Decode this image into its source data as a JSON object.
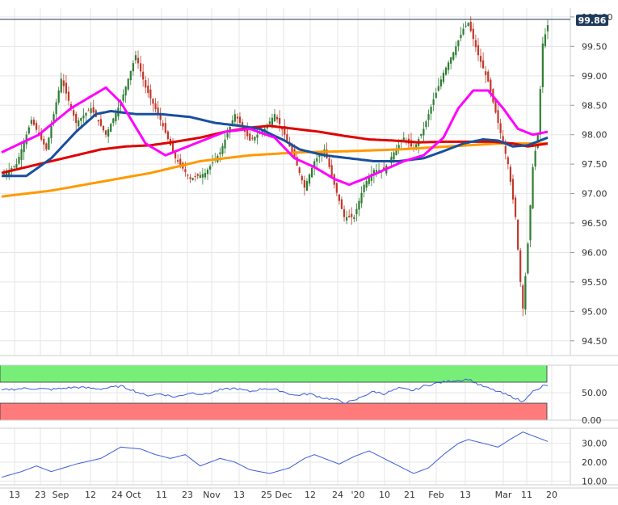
{
  "chart_data": [
    {
      "type": "candlestick",
      "panel": "price",
      "x_tick_labels": [
        "13",
        "23",
        "Sep",
        "12",
        "24",
        "Oct",
        "11",
        "23",
        "Nov",
        "13",
        "25",
        "Dec",
        "12",
        "24",
        "'20",
        "10",
        "21",
        "Feb",
        "13",
        "Mar",
        "11",
        "20"
      ],
      "y_tick_labels": [
        "100.00",
        "99.50",
        "99.00",
        "98.50",
        "98.00",
        "97.50",
        "97.00",
        "96.50",
        "96.00",
        "95.50",
        "95.00",
        "94.50"
      ],
      "ylim": [
        94.25,
        100.15
      ],
      "last_price": "99.86",
      "last_price_value": 99.86,
      "grid": true,
      "colors": {
        "up": "#2e7d32",
        "down": "#c0392b",
        "last_price_badge": "#1f3b5c",
        "sma20": "#ff00ff",
        "sma50": "#1a4f9c",
        "sma100": "#e00000",
        "sma200": "#ff9900"
      },
      "close_key_points": [
        [
          0,
          97.3
        ],
        [
          6,
          97.5
        ],
        [
          12,
          98.25
        ],
        [
          18,
          97.75
        ],
        [
          24,
          98.95
        ],
        [
          30,
          98.2
        ],
        [
          36,
          98.45
        ],
        [
          42,
          98.0
        ],
        [
          48,
          98.55
        ],
        [
          54,
          99.35
        ],
        [
          58,
          98.8
        ],
        [
          64,
          98.25
        ],
        [
          70,
          97.6
        ],
        [
          76,
          97.25
        ],
        [
          82,
          97.35
        ],
        [
          88,
          97.7
        ],
        [
          94,
          98.35
        ],
        [
          100,
          97.9
        ],
        [
          106,
          98.1
        ],
        [
          110,
          98.35
        ],
        [
          114,
          98.0
        ],
        [
          118,
          97.6
        ],
        [
          122,
          97.1
        ],
        [
          126,
          97.55
        ],
        [
          130,
          97.75
        ],
        [
          134,
          97.15
        ],
        [
          138,
          96.6
        ],
        [
          142,
          96.6
        ],
        [
          146,
          97.15
        ],
        [
          150,
          97.4
        ],
        [
          154,
          97.4
        ],
        [
          158,
          97.7
        ],
        [
          162,
          97.95
        ],
        [
          166,
          97.75
        ],
        [
          170,
          98.1
        ],
        [
          174,
          98.6
        ],
        [
          178,
          99.05
        ],
        [
          182,
          99.4
        ],
        [
          186,
          99.8
        ],
        [
          188,
          99.9
        ],
        [
          192,
          99.35
        ],
        [
          196,
          98.9
        ],
        [
          200,
          98.2
        ],
        [
          204,
          97.5
        ],
        [
          207,
          96.6
        ],
        [
          209,
          95.5
        ],
        [
          210,
          95.05
        ],
        [
          212,
          96.15
        ],
        [
          214,
          97.45
        ],
        [
          216,
          98.0
        ],
        [
          218,
          99.55
        ],
        [
          220,
          99.86
        ]
      ],
      "moving_averages": [
        {
          "period": 20,
          "key_points": [
            [
              0,
              97.7
            ],
            [
              15,
              98.0
            ],
            [
              28,
              98.45
            ],
            [
              42,
              98.8
            ],
            [
              48,
              98.55
            ],
            [
              58,
              97.85
            ],
            [
              66,
              97.65
            ],
            [
              78,
              97.85
            ],
            [
              90,
              98.05
            ],
            [
              100,
              98.1
            ],
            [
              110,
              97.95
            ],
            [
              118,
              97.6
            ],
            [
              126,
              97.45
            ],
            [
              134,
              97.25
            ],
            [
              140,
              97.15
            ],
            [
              146,
              97.25
            ],
            [
              154,
              97.4
            ],
            [
              162,
              97.55
            ],
            [
              170,
              97.65
            ],
            [
              178,
              97.95
            ],
            [
              184,
              98.45
            ],
            [
              190,
              98.75
            ],
            [
              196,
              98.75
            ],
            [
              202,
              98.45
            ],
            [
              208,
              98.1
            ],
            [
              214,
              98.0
            ],
            [
              220,
              98.05
            ]
          ]
        },
        {
          "period": 50,
          "key_points": [
            [
              0,
              97.3
            ],
            [
              10,
              97.3
            ],
            [
              20,
              97.6
            ],
            [
              30,
              98.05
            ],
            [
              38,
              98.35
            ],
            [
              44,
              98.4
            ],
            [
              54,
              98.35
            ],
            [
              64,
              98.35
            ],
            [
              76,
              98.3
            ],
            [
              86,
              98.2
            ],
            [
              96,
              98.15
            ],
            [
              104,
              98.1
            ],
            [
              114,
              97.9
            ],
            [
              120,
              97.75
            ],
            [
              130,
              97.65
            ],
            [
              140,
              97.6
            ],
            [
              150,
              97.55
            ],
            [
              160,
              97.55
            ],
            [
              170,
              97.6
            ],
            [
              178,
              97.72
            ],
            [
              186,
              97.85
            ],
            [
              194,
              97.92
            ],
            [
              200,
              97.9
            ],
            [
              206,
              97.8
            ],
            [
              212,
              97.82
            ],
            [
              220,
              97.95
            ]
          ]
        },
        {
          "period": 100,
          "key_points": [
            [
              0,
              97.35
            ],
            [
              10,
              97.45
            ],
            [
              20,
              97.55
            ],
            [
              30,
              97.65
            ],
            [
              40,
              97.75
            ],
            [
              50,
              97.8
            ],
            [
              60,
              97.82
            ],
            [
              70,
              97.88
            ],
            [
              80,
              97.95
            ],
            [
              90,
              98.05
            ],
            [
              100,
              98.12
            ],
            [
              108,
              98.15
            ],
            [
              118,
              98.1
            ],
            [
              128,
              98.05
            ],
            [
              138,
              97.98
            ],
            [
              148,
              97.92
            ],
            [
              158,
              97.9
            ],
            [
              168,
              97.87
            ],
            [
              178,
              97.88
            ],
            [
              188,
              97.88
            ],
            [
              198,
              97.88
            ],
            [
              206,
              97.85
            ],
            [
              212,
              97.8
            ],
            [
              220,
              97.85
            ]
          ]
        },
        {
          "period": 200,
          "key_points": [
            [
              0,
              96.95
            ],
            [
              20,
              97.05
            ],
            [
              40,
              97.2
            ],
            [
              60,
              97.35
            ],
            [
              80,
              97.55
            ],
            [
              100,
              97.65
            ],
            [
              120,
              97.7
            ],
            [
              140,
              97.72
            ],
            [
              160,
              97.75
            ],
            [
              180,
              97.8
            ],
            [
              200,
              97.85
            ],
            [
              220,
              97.85
            ]
          ]
        }
      ]
    },
    {
      "type": "line",
      "panel": "rsi",
      "y_tick_labels": [
        "50.00",
        "0.00"
      ],
      "ylim": [
        0,
        100
      ],
      "overbought_zone": [
        70,
        100
      ],
      "oversold_zone": [
        0,
        30
      ],
      "colors": {
        "line": "#3a5bd9",
        "overbought": "#77ee77",
        "oversold": "#ff7b7b"
      },
      "key_points": [
        [
          0,
          55
        ],
        [
          10,
          58
        ],
        [
          20,
          56
        ],
        [
          30,
          60
        ],
        [
          40,
          57
        ],
        [
          48,
          62
        ],
        [
          52,
          56
        ],
        [
          58,
          45
        ],
        [
          64,
          48
        ],
        [
          70,
          42
        ],
        [
          76,
          50
        ],
        [
          82,
          47
        ],
        [
          88,
          55
        ],
        [
          94,
          58
        ],
        [
          100,
          52
        ],
        [
          106,
          58
        ],
        [
          112,
          54
        ],
        [
          118,
          45
        ],
        [
          124,
          48
        ],
        [
          130,
          40
        ],
        [
          134,
          38
        ],
        [
          138,
          32
        ],
        [
          142,
          35
        ],
        [
          146,
          45
        ],
        [
          150,
          52
        ],
        [
          154,
          48
        ],
        [
          160,
          58
        ],
        [
          166,
          54
        ],
        [
          170,
          62
        ],
        [
          176,
          68
        ],
        [
          182,
          72
        ],
        [
          186,
          73
        ],
        [
          188,
          75
        ],
        [
          192,
          65
        ],
        [
          196,
          58
        ],
        [
          200,
          52
        ],
        [
          204,
          45
        ],
        [
          207,
          40
        ],
        [
          209,
          35
        ],
        [
          210,
          33
        ],
        [
          212,
          45
        ],
        [
          214,
          52
        ],
        [
          216,
          55
        ],
        [
          218,
          62
        ],
        [
          220,
          63
        ]
      ]
    },
    {
      "type": "line",
      "panel": "adx",
      "y_tick_labels": [
        "30.00",
        "20.00",
        "10.00"
      ],
      "ylim": [
        8,
        38
      ],
      "colors": {
        "line": "#3a5bd9"
      },
      "key_points": [
        [
          0,
          12
        ],
        [
          8,
          15
        ],
        [
          14,
          18
        ],
        [
          20,
          15
        ],
        [
          30,
          19
        ],
        [
          40,
          22
        ],
        [
          48,
          28
        ],
        [
          56,
          27
        ],
        [
          62,
          24
        ],
        [
          68,
          22
        ],
        [
          74,
          24
        ],
        [
          80,
          18
        ],
        [
          88,
          22
        ],
        [
          94,
          20
        ],
        [
          100,
          16
        ],
        [
          108,
          14
        ],
        [
          116,
          17
        ],
        [
          122,
          22
        ],
        [
          126,
          24
        ],
        [
          130,
          22
        ],
        [
          136,
          19
        ],
        [
          142,
          23
        ],
        [
          148,
          26
        ],
        [
          154,
          22
        ],
        [
          160,
          18
        ],
        [
          166,
          14
        ],
        [
          172,
          17
        ],
        [
          178,
          24
        ],
        [
          184,
          30
        ],
        [
          188,
          32
        ],
        [
          194,
          30
        ],
        [
          200,
          28
        ],
        [
          206,
          33
        ],
        [
          210,
          36
        ],
        [
          214,
          34
        ],
        [
          220,
          31
        ]
      ]
    }
  ]
}
